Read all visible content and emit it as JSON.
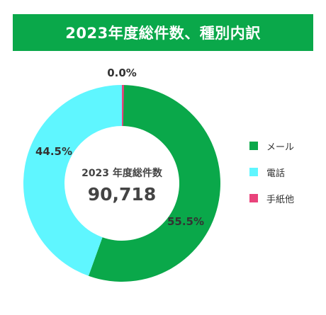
{
  "header": {
    "title": "2023年度総件数、種別内訳"
  },
  "center": {
    "title": "2023 年度総件数",
    "value": "90,718"
  },
  "chart_data": {
    "type": "pie",
    "title": "2023年度総件数、種別内訳",
    "categories": [
      "メール",
      "電話",
      "手紙他"
    ],
    "values": [
      55.5,
      44.5,
      0.0
    ],
    "labels": [
      "55.5%",
      "44.5%",
      "0.0%"
    ],
    "colors": [
      "#0aa84a",
      "#5ff6ff",
      "#e9437b"
    ],
    "legend_position": "right"
  }
}
